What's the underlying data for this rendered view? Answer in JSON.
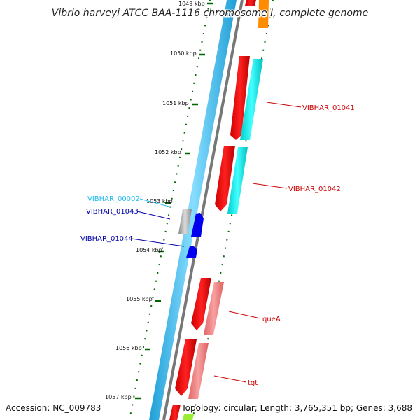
{
  "title": "Vibrio harveyi ATCC BAA-1116 chromosome I, complete genome",
  "footer": {
    "accession": "Accession: NC_009783",
    "summary": "Topology: circular; Length: 3,765,351 bp; Genes: 3,688"
  },
  "ticks": [
    "1049 kbp",
    "1050 kbp",
    "1051 kbp",
    "1052 kbp",
    "1053 kbp",
    "1054 kbp",
    "1055 kbp",
    "1056 kbp",
    "1057 kbp"
  ],
  "genes": [
    {
      "label": "VIBHAR_01041",
      "color": "#cc0000"
    },
    {
      "label": "VIBHAR_01042",
      "color": "#cc0000"
    },
    {
      "label": "VIBHAR_00002",
      "color": "#22bbee"
    },
    {
      "label": "VIBHAR_01043",
      "color": "#0000aa"
    },
    {
      "label": "VIBHAR_01044",
      "color": "#0000aa"
    },
    {
      "label": "queA",
      "color": "#cc0000"
    },
    {
      "label": "tgt",
      "color": "#cc0000"
    }
  ],
  "colors": {
    "cds_forward": "#ff0000",
    "cds_forward_alt": "#f08080",
    "orf_cyan": "#00e5e5",
    "orf_orange": "#ff8c00",
    "rrna_grey": "#aaaaaa",
    "trna_blue": "#0000ee",
    "backbone_blue": "#33bbee",
    "backbone_grey": "#777777",
    "tick_green": "#006600",
    "lime": "#99ee33"
  }
}
